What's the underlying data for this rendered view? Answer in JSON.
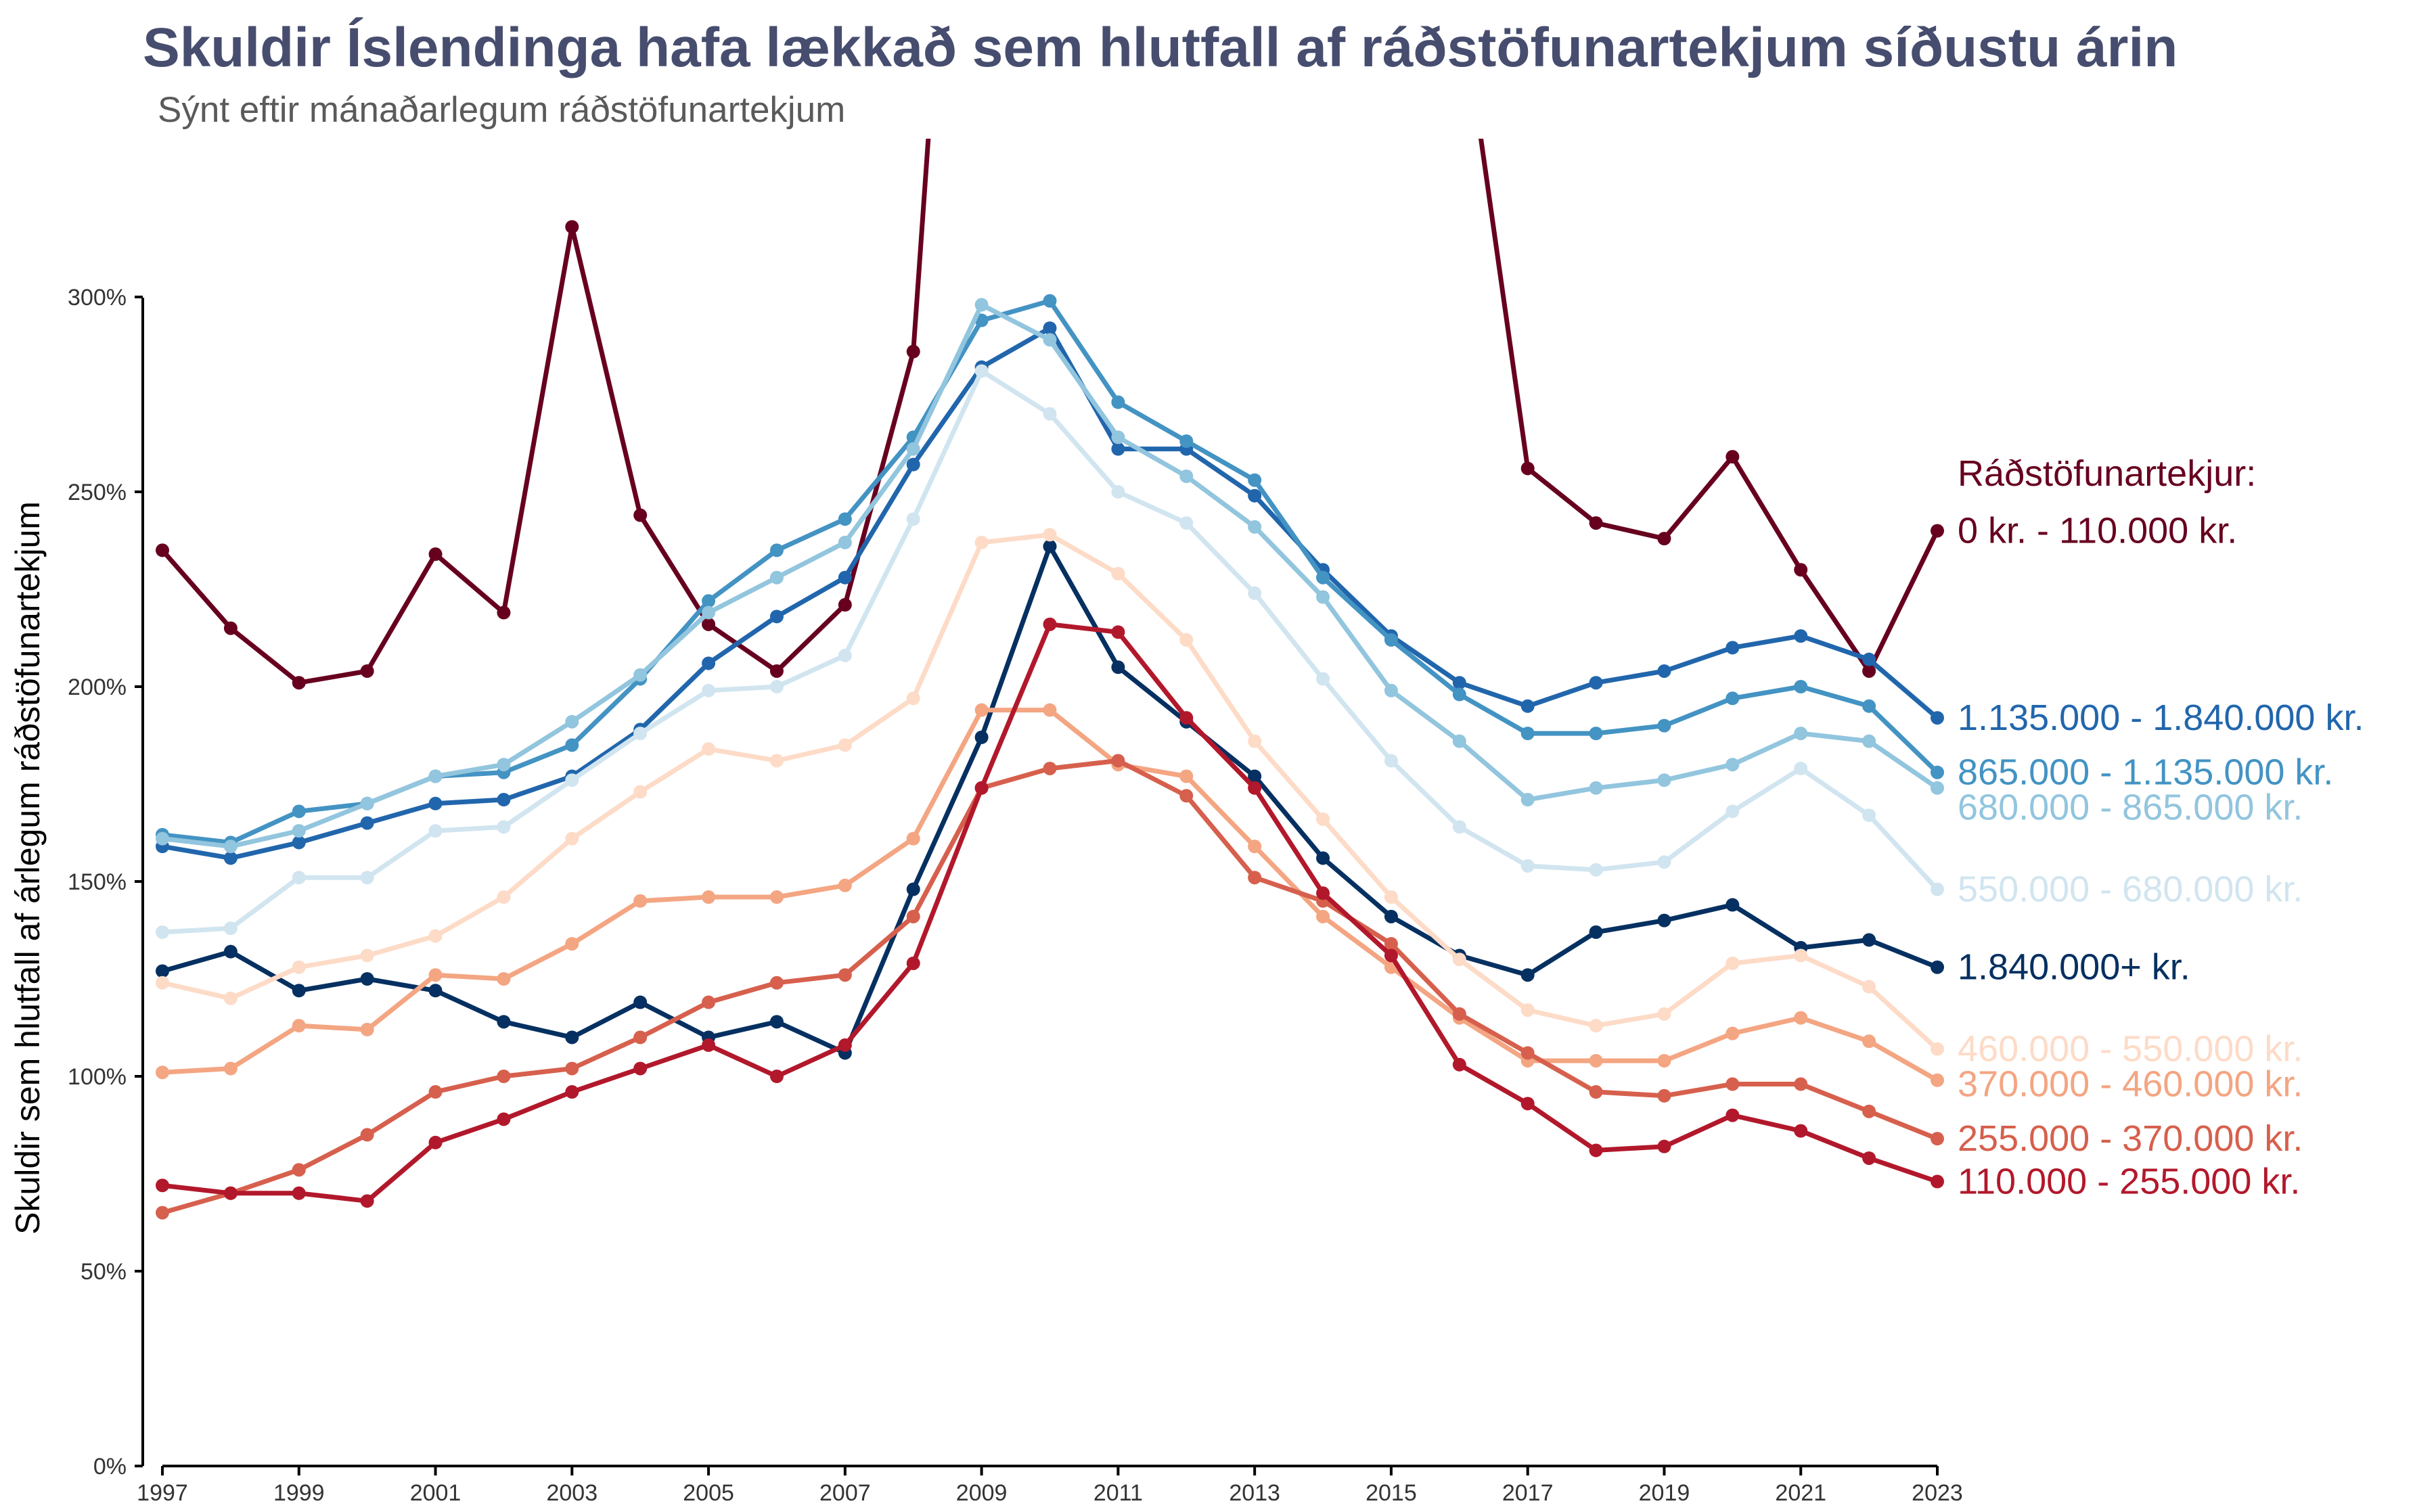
{
  "chart_data": {
    "type": "line",
    "title": "Skuldir Íslendinga hafa lækkað sem hlutfall af ráðstöfunartekjum síðustu árin",
    "subtitle": "Sýnt eftir mánaðarlegum ráðstöfunartekjum",
    "xlabel": "",
    "ylabel": "Skuldir sem hlutfall af árlegum ráðstöfunartekjum",
    "ylim": [
      0,
      3.4
    ],
    "y_format": "percent",
    "x_ticks": [
      1997,
      1999,
      2001,
      2003,
      2005,
      2007,
      2009,
      2011,
      2013,
      2015,
      2017,
      2019,
      2021,
      2023
    ],
    "y_ticks": [
      0,
      0.5,
      1.0,
      1.5,
      2.0,
      2.5,
      3.0
    ],
    "y_tick_labels": [
      "0%",
      "50%",
      "100%",
      "150%",
      "200%",
      "250%",
      "300%"
    ],
    "legend_title": "Ráðstöfunartekjur:",
    "legend_placement": "right, direct labels at line ends",
    "grid": false,
    "x": [
      1997,
      1998,
      1999,
      2000,
      2001,
      2002,
      2003,
      2004,
      2005,
      2006,
      2007,
      2008,
      2009,
      2010,
      2011,
      2012,
      2013,
      2014,
      2015,
      2016,
      2017,
      2018,
      2019,
      2020,
      2021,
      2022,
      2023
    ],
    "series": [
      {
        "name": "0 kr. - 110.000 kr.",
        "color": "#67001f",
        "values": [
          2.35,
          2.15,
          2.01,
          2.04,
          2.34,
          2.19,
          3.18,
          2.44,
          2.16,
          2.04,
          2.21,
          2.86,
          null,
          null,
          null,
          null,
          null,
          null,
          null,
          null,
          2.56,
          2.42,
          2.38,
          2.59,
          2.3,
          2.04,
          2.4
        ]
      },
      {
        "name": "1.135.000 - 1.840.000 kr.",
        "color": "#2166ac",
        "values": [
          1.59,
          1.56,
          1.6,
          1.65,
          1.7,
          1.71,
          1.77,
          1.89,
          2.06,
          2.18,
          2.28,
          2.57,
          2.82,
          2.92,
          2.61,
          2.61,
          2.49,
          2.3,
          2.13,
          2.01,
          1.95,
          2.01,
          2.04,
          2.1,
          2.13,
          2.07,
          1.92
        ]
      },
      {
        "name": "865.000 - 1.135.000 kr.",
        "color": "#4393c3",
        "values": [
          1.62,
          1.6,
          1.68,
          1.7,
          1.77,
          1.78,
          1.85,
          2.02,
          2.22,
          2.35,
          2.43,
          2.64,
          2.94,
          2.99,
          2.73,
          2.63,
          2.53,
          2.28,
          2.12,
          1.98,
          1.88,
          1.88,
          1.9,
          1.97,
          2.0,
          1.95,
          1.78
        ]
      },
      {
        "name": "680.000 - 865.000 kr.",
        "color": "#92c5de",
        "values": [
          1.61,
          1.59,
          1.63,
          1.7,
          1.77,
          1.8,
          1.91,
          2.03,
          2.19,
          2.28,
          2.37,
          2.61,
          2.98,
          2.89,
          2.64,
          2.54,
          2.41,
          2.23,
          1.99,
          1.86,
          1.71,
          1.74,
          1.76,
          1.8,
          1.88,
          1.86,
          1.74
        ]
      },
      {
        "name": "550.000 - 680.000 kr.",
        "color": "#d1e5f0",
        "values": [
          1.37,
          1.38,
          1.51,
          1.51,
          1.63,
          1.64,
          1.76,
          1.88,
          1.99,
          2.0,
          2.08,
          2.43,
          2.81,
          2.7,
          2.5,
          2.42,
          2.24,
          2.02,
          1.81,
          1.64,
          1.54,
          1.53,
          1.55,
          1.68,
          1.79,
          1.67,
          1.48
        ]
      },
      {
        "name": "1.840.000+ kr.",
        "color": "#053061",
        "values": [
          1.27,
          1.32,
          1.22,
          1.25,
          1.22,
          1.14,
          1.1,
          1.19,
          1.1,
          1.14,
          1.06,
          1.48,
          1.87,
          2.36,
          2.05,
          1.91,
          1.77,
          1.56,
          1.41,
          1.31,
          1.26,
          1.37,
          1.4,
          1.44,
          1.33,
          1.35,
          1.28
        ]
      },
      {
        "name": "460.000 - 550.000 kr.",
        "color": "#fddbc7",
        "values": [
          1.24,
          1.2,
          1.28,
          1.31,
          1.36,
          1.46,
          1.61,
          1.73,
          1.84,
          1.81,
          1.85,
          1.97,
          2.37,
          2.39,
          2.29,
          2.12,
          1.86,
          1.66,
          1.46,
          1.3,
          1.17,
          1.13,
          1.16,
          1.29,
          1.31,
          1.23,
          1.07
        ]
      },
      {
        "name": "370.000 - 460.000 kr.",
        "color": "#f4a582",
        "values": [
          1.01,
          1.02,
          1.13,
          1.12,
          1.26,
          1.25,
          1.34,
          1.45,
          1.46,
          1.46,
          1.49,
          1.61,
          1.94,
          1.94,
          1.8,
          1.77,
          1.59,
          1.41,
          1.28,
          1.15,
          1.04,
          1.04,
          1.04,
          1.11,
          1.15,
          1.09,
          0.99
        ]
      },
      {
        "name": "255.000 - 370.000 kr.",
        "color": "#d6604d",
        "values": [
          0.65,
          0.7,
          0.76,
          0.85,
          0.96,
          1.0,
          1.02,
          1.1,
          1.19,
          1.24,
          1.26,
          1.41,
          1.74,
          1.79,
          1.81,
          1.72,
          1.51,
          1.45,
          1.34,
          1.16,
          1.06,
          0.96,
          0.95,
          0.98,
          0.98,
          0.91,
          0.84
        ]
      },
      {
        "name": "110.000 - 255.000 kr.",
        "color": "#b2182b",
        "values": [
          0.72,
          0.7,
          0.7,
          0.68,
          0.83,
          0.89,
          0.96,
          1.02,
          1.08,
          1.0,
          1.08,
          1.29,
          1.74,
          2.16,
          2.14,
          1.92,
          1.74,
          1.47,
          1.31,
          1.03,
          0.93,
          0.81,
          0.82,
          0.9,
          0.86,
          0.79,
          0.73
        ]
      }
    ]
  }
}
